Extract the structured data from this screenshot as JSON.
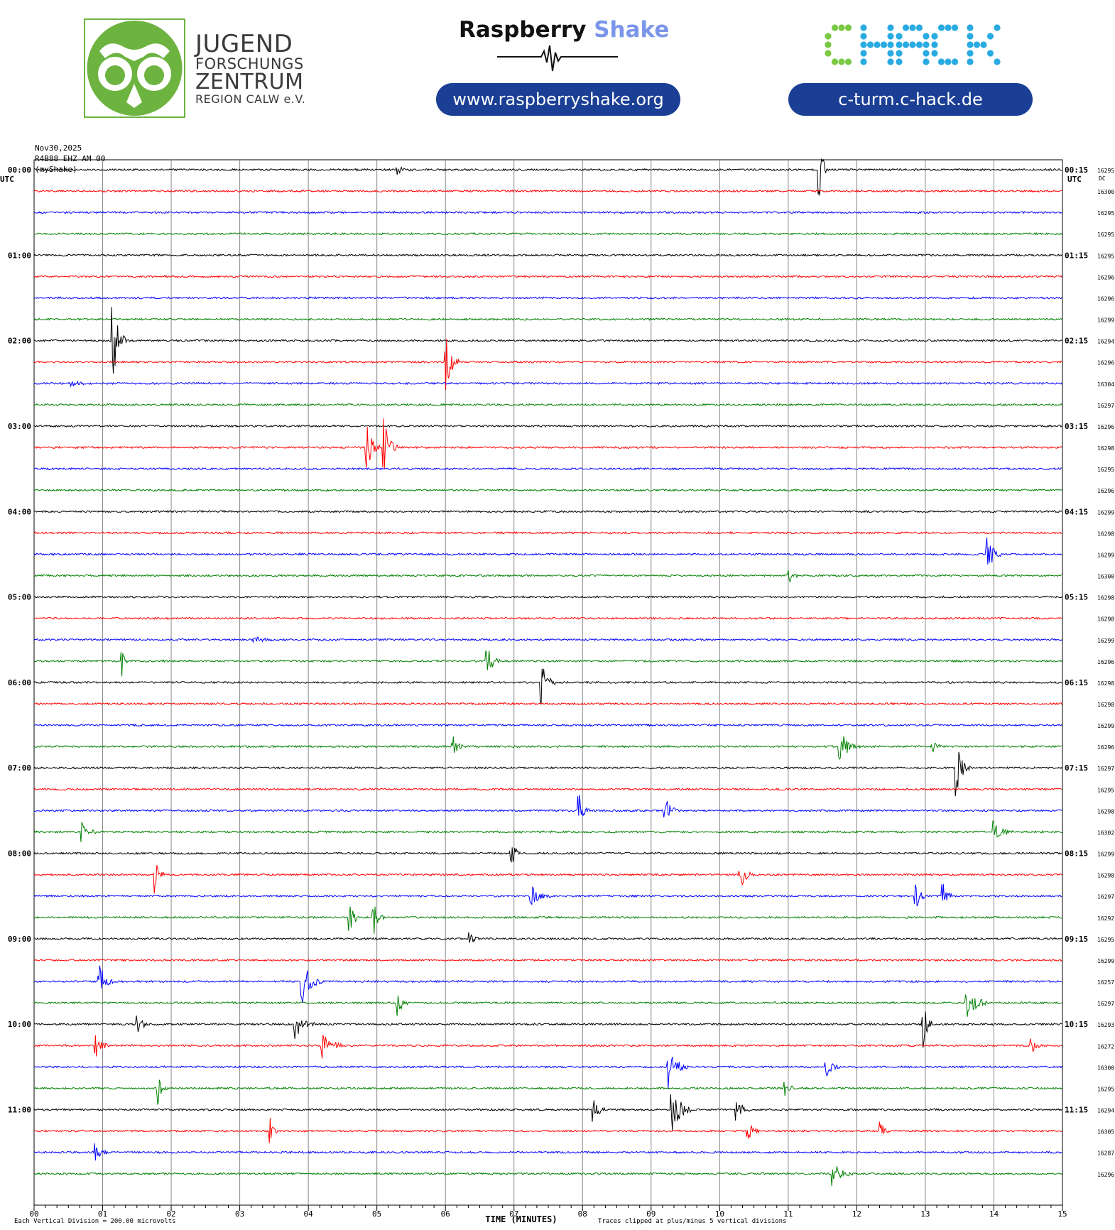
{
  "header": {
    "jfz": {
      "line1": "JUGEND",
      "line2": "FORSCHUNGS",
      "line3": "ZENTRUM",
      "line4": "REGION CALW e.V."
    },
    "raspberry_shake": {
      "name_part1": "Raspberry",
      "name_part2": "Shake",
      "url": "www.raspberryshake.org"
    },
    "chack": {
      "logo_text": "CHACK",
      "url": "c-turm.c-hack.de"
    }
  },
  "colors": {
    "pill_bg": "#1b3f95",
    "jfz_green": "#6db33f",
    "shake_blue": "#7b96e8",
    "chack_green": "#7ac943",
    "chack_cyan": "#29abe2",
    "trace_colors": [
      "#000000",
      "#ff0000",
      "#0000ff",
      "#008000"
    ]
  },
  "chart_data": {
    "type": "helicorder",
    "date": "Nov30,2025",
    "station": "R4B88 EHZ AM 00",
    "network": "(myShake)",
    "left_axis_title": "UTC",
    "right_axis_title": "UTC",
    "dc_title": "DC",
    "xlabel": "TIME (MINUTES)",
    "xlim": [
      0,
      15
    ],
    "x_ticks": [
      "00",
      "01",
      "02",
      "03",
      "04",
      "05",
      "06",
      "07",
      "08",
      "09",
      "10",
      "11",
      "12",
      "13",
      "14",
      "15"
    ],
    "left_labels": [
      "00:00",
      "01:00",
      "02:00",
      "03:00",
      "04:00",
      "05:00",
      "06:00",
      "07:00",
      "08:00",
      "09:00",
      "10:00",
      "11:00"
    ],
    "right_labels": [
      "00:15",
      "01:15",
      "02:15",
      "03:15",
      "04:15",
      "05:15",
      "06:15",
      "07:15",
      "08:15",
      "09:15",
      "10:15",
      "11:15"
    ],
    "trace_minutes": 15,
    "dc_offsets": [
      16295,
      16300,
      16295,
      16295,
      16295,
      16296,
      16296,
      16299,
      16294,
      16296,
      16304,
      16297,
      16296,
      16298,
      16295,
      16296,
      16299,
      16298,
      16299,
      16300,
      16298,
      16298,
      16299,
      16296,
      16298,
      16298,
      16299,
      16296,
      16297,
      16295,
      16298,
      16302,
      16299,
      16298,
      16297,
      16292,
      16295,
      16299,
      16257,
      16297,
      16293,
      16272,
      16300,
      16295,
      16294,
      16305,
      16287,
      16296
    ],
    "footer_left": "Each Vertical Division =  200.00 microvolts",
    "footer_right": "Traces clipped at plus/minus 5 vertical divisions",
    "events": [
      {
        "trace": 0,
        "minute": 11.45,
        "amp": 45,
        "dur": 0.15
      },
      {
        "trace": 0,
        "minute": 5.3,
        "amp": 6,
        "dur": 0.25
      },
      {
        "trace": 8,
        "minute": 1.15,
        "amp": 55,
        "dur": 0.2
      },
      {
        "trace": 9,
        "minute": 6.0,
        "amp": 45,
        "dur": 0.2
      },
      {
        "trace": 10,
        "minute": 0.55,
        "amp": 4,
        "dur": 0.3
      },
      {
        "trace": 13,
        "minute": 5.1,
        "amp": 45,
        "dur": 0.2
      },
      {
        "trace": 13,
        "minute": 4.85,
        "amp": 40,
        "dur": 0.2
      },
      {
        "trace": 18,
        "minute": 13.9,
        "amp": 30,
        "dur": 0.2
      },
      {
        "trace": 19,
        "minute": 11.0,
        "amp": 15,
        "dur": 0.15
      },
      {
        "trace": 22,
        "minute": 3.2,
        "amp": 5,
        "dur": 0.3
      },
      {
        "trace": 23,
        "minute": 1.28,
        "amp": 22,
        "dur": 0.1
      },
      {
        "trace": 23,
        "minute": 6.6,
        "amp": 25,
        "dur": 0.2
      },
      {
        "trace": 24,
        "minute": 7.4,
        "amp": 30,
        "dur": 0.2
      },
      {
        "trace": 27,
        "minute": 11.75,
        "amp": 25,
        "dur": 0.3
      },
      {
        "trace": 27,
        "minute": 6.1,
        "amp": 20,
        "dur": 0.15
      },
      {
        "trace": 27,
        "minute": 13.1,
        "amp": 12,
        "dur": 0.15
      },
      {
        "trace": 28,
        "minute": 13.45,
        "amp": 45,
        "dur": 0.2
      },
      {
        "trace": 30,
        "minute": 7.95,
        "amp": 25,
        "dur": 0.15
      },
      {
        "trace": 30,
        "minute": 9.2,
        "amp": 22,
        "dur": 0.2
      },
      {
        "trace": 31,
        "minute": 0.7,
        "amp": 18,
        "dur": 0.2
      },
      {
        "trace": 31,
        "minute": 14.0,
        "amp": 15,
        "dur": 0.3
      },
      {
        "trace": 32,
        "minute": 6.95,
        "amp": 25,
        "dur": 0.15
      },
      {
        "trace": 33,
        "minute": 1.75,
        "amp": 28,
        "dur": 0.15
      },
      {
        "trace": 33,
        "minute": 10.3,
        "amp": 20,
        "dur": 0.2
      },
      {
        "trace": 34,
        "minute": 7.25,
        "amp": 15,
        "dur": 0.3
      },
      {
        "trace": 34,
        "minute": 12.85,
        "amp": 25,
        "dur": 0.15
      },
      {
        "trace": 34,
        "minute": 13.25,
        "amp": 20,
        "dur": 0.15
      },
      {
        "trace": 35,
        "minute": 4.6,
        "amp": 25,
        "dur": 0.15
      },
      {
        "trace": 35,
        "minute": 4.95,
        "amp": 28,
        "dur": 0.15
      },
      {
        "trace": 36,
        "minute": 6.35,
        "amp": 10,
        "dur": 0.15
      },
      {
        "trace": 38,
        "minute": 0.95,
        "amp": 28,
        "dur": 0.2
      },
      {
        "trace": 38,
        "minute": 3.9,
        "amp": 35,
        "dur": 0.3
      },
      {
        "trace": 39,
        "minute": 13.6,
        "amp": 30,
        "dur": 0.3
      },
      {
        "trace": 39,
        "minute": 5.3,
        "amp": 20,
        "dur": 0.15
      },
      {
        "trace": 40,
        "minute": 1.5,
        "amp": 25,
        "dur": 0.15
      },
      {
        "trace": 40,
        "minute": 3.8,
        "amp": 22,
        "dur": 0.3
      },
      {
        "trace": 40,
        "minute": 12.95,
        "amp": 45,
        "dur": 0.15
      },
      {
        "trace": 41,
        "minute": 0.9,
        "amp": 20,
        "dur": 0.2
      },
      {
        "trace": 41,
        "minute": 4.2,
        "amp": 22,
        "dur": 0.3
      },
      {
        "trace": 41,
        "minute": 14.55,
        "amp": 12,
        "dur": 0.15
      },
      {
        "trace": 42,
        "minute": 9.25,
        "amp": 30,
        "dur": 0.3
      },
      {
        "trace": 42,
        "minute": 11.55,
        "amp": 15,
        "dur": 0.2
      },
      {
        "trace": 43,
        "minute": 1.8,
        "amp": 25,
        "dur": 0.15
      },
      {
        "trace": 43,
        "minute": 10.95,
        "amp": 15,
        "dur": 0.15
      },
      {
        "trace": 44,
        "minute": 8.15,
        "amp": 18,
        "dur": 0.2
      },
      {
        "trace": 44,
        "minute": 9.3,
        "amp": 35,
        "dur": 0.3
      },
      {
        "trace": 44,
        "minute": 10.25,
        "amp": 18,
        "dur": 0.2
      },
      {
        "trace": 45,
        "minute": 3.45,
        "amp": 18,
        "dur": 0.1
      },
      {
        "trace": 45,
        "minute": 10.4,
        "amp": 15,
        "dur": 0.2
      },
      {
        "trace": 45,
        "minute": 12.35,
        "amp": 12,
        "dur": 0.15
      },
      {
        "trace": 46,
        "minute": 0.9,
        "amp": 12,
        "dur": 0.2
      },
      {
        "trace": 47,
        "minute": 11.65,
        "amp": 18,
        "dur": 0.3
      }
    ]
  }
}
